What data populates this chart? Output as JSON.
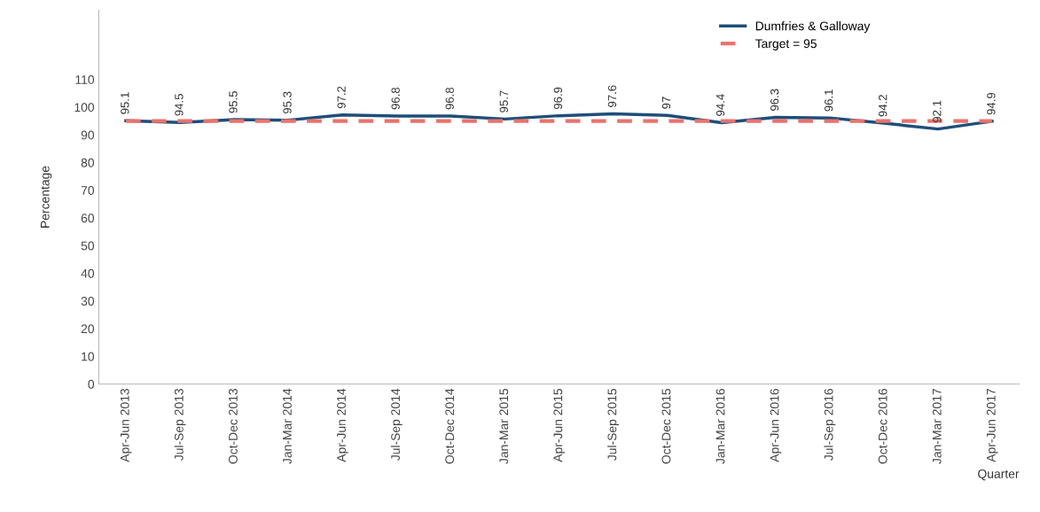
{
  "chart_data": {
    "type": "line",
    "xlabel": "Quarter",
    "ylabel": "Percentage",
    "categories": [
      "Apr-Jun 2013",
      "Jul-Sep 2013",
      "Oct-Dec 2013",
      "Jan-Mar 2014",
      "Apr-Jun 2014",
      "Jul-Sep 2014",
      "Oct-Dec 2014",
      "Jan-Mar 2015",
      "Apr-Jun 2015",
      "Jul-Sep 2015",
      "Oct-Dec 2015",
      "Jan-Mar 2016",
      "Apr-Jun 2016",
      "Jul-Sep 2016",
      "Oct-Dec 2016",
      "Jan-Mar 2017",
      "Apr-Jun 2017"
    ],
    "series": [
      {
        "name": "Dumfries & Galloway",
        "color": "#1f4e79",
        "line_style": "solid",
        "values": [
          95.1,
          94.5,
          95.5,
          95.3,
          97.2,
          96.8,
          96.8,
          95.7,
          96.9,
          97.6,
          97,
          94.4,
          96.3,
          96.1,
          94.2,
          92.1,
          94.9
        ],
        "value_labels": [
          "95.1",
          "94.5",
          "95.5",
          "95.3",
          "97.2",
          "96.8",
          "96.8",
          "95.7",
          "96.9",
          "97.6",
          "97",
          "94.4",
          "96.3",
          "96.1",
          "94.2",
          "92.1",
          "94.9"
        ]
      },
      {
        "name": "Target = 95",
        "color": "#e8736c",
        "line_style": "dashed",
        "values": [
          95,
          95,
          95,
          95,
          95,
          95,
          95,
          95,
          95,
          95,
          95,
          95,
          95,
          95,
          95,
          95,
          95
        ]
      }
    ],
    "ylim": [
      0,
      135
    ],
    "yticks": [
      0,
      10,
      20,
      30,
      40,
      50,
      60,
      70,
      80,
      90,
      100,
      110
    ],
    "grid": false,
    "legend": "top right",
    "marker": "none"
  }
}
